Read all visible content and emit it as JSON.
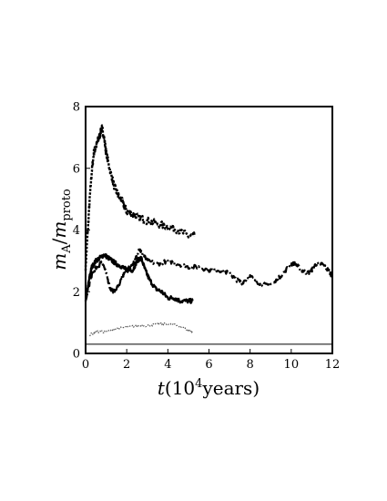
{
  "chart_data": {
    "type": "line",
    "title": "",
    "xlabel_parts": {
      "var": "t",
      "open": "(",
      "base": "10",
      "exp": "4",
      "unit": "years",
      "close": ")"
    },
    "ylabel_parts": {
      "m": "m",
      "sub1": "A",
      "slash": "/",
      "m2": "m",
      "sub2": "proto"
    },
    "xlim": [
      0,
      12
    ],
    "ylim": [
      0,
      8
    ],
    "xticks": [
      0,
      2,
      4,
      6,
      8,
      10,
      12
    ],
    "yticks": [
      0,
      2,
      4,
      6,
      8
    ],
    "grid": false,
    "legend": "none",
    "series": [
      {
        "style": "dotted",
        "x": [
          0.0,
          0.1,
          0.2,
          0.3,
          0.4,
          0.5,
          0.6,
          0.7,
          0.8,
          0.9,
          1.0,
          1.2,
          1.4,
          1.6,
          1.8,
          2.0,
          2.3,
          2.6,
          3.0,
          3.5,
          4.0,
          4.5,
          5.0,
          5.3
        ],
        "y": [
          2.8,
          3.9,
          5.0,
          5.9,
          6.5,
          6.7,
          6.9,
          7.1,
          7.3,
          7.0,
          6.5,
          5.9,
          5.4,
          5.1,
          4.9,
          4.6,
          4.5,
          4.4,
          4.3,
          4.2,
          4.1,
          4.0,
          3.8,
          3.8
        ]
      },
      {
        "style": "solid",
        "x": [
          0.0,
          0.1,
          0.2,
          0.3,
          0.5,
          0.7,
          0.9,
          1.1,
          1.3,
          1.5,
          1.8,
          2.0,
          2.3,
          2.5,
          2.7,
          2.9,
          3.1,
          3.4,
          3.7,
          4.0,
          4.3,
          4.6,
          5.0,
          5.2
        ],
        "y": [
          1.7,
          2.1,
          2.5,
          2.8,
          3.0,
          3.1,
          3.2,
          3.1,
          3.0,
          2.9,
          2.8,
          2.7,
          2.7,
          3.0,
          3.1,
          2.7,
          2.4,
          2.1,
          2.0,
          1.8,
          1.8,
          1.7,
          1.7,
          1.7
        ]
      },
      {
        "style": "dashdot",
        "x": [
          0.0,
          0.2,
          0.4,
          0.6,
          0.8,
          1.0,
          1.2,
          1.4,
          1.6,
          1.8,
          2.0,
          2.2,
          2.4,
          2.6,
          2.8,
          3.0,
          3.5,
          4.0,
          4.5,
          5.0,
          5.5,
          6.0,
          6.5,
          7.0,
          7.3,
          7.6,
          8.0,
          8.4,
          8.8,
          9.2,
          9.6,
          10.0,
          10.2,
          10.5,
          10.8,
          11.0,
          11.2,
          11.5,
          11.8,
          12.0
        ],
        "y": [
          1.7,
          2.3,
          2.7,
          2.8,
          3.0,
          2.6,
          2.1,
          2.0,
          2.2,
          2.5,
          2.7,
          2.8,
          3.0,
          3.4,
          3.2,
          3.0,
          2.9,
          3.0,
          2.9,
          2.8,
          2.8,
          2.7,
          2.7,
          2.6,
          2.4,
          2.3,
          2.5,
          2.3,
          2.2,
          2.3,
          2.6,
          2.9,
          2.9,
          2.7,
          2.6,
          2.7,
          2.9,
          2.9,
          2.7,
          2.5
        ]
      },
      {
        "style": "faint",
        "x": [
          0.2,
          0.5,
          1.0,
          1.5,
          2.0,
          2.5,
          3.0,
          3.5,
          4.0,
          4.5,
          5.0,
          5.2
        ],
        "y": [
          0.6,
          0.7,
          0.7,
          0.8,
          0.85,
          0.9,
          0.9,
          0.95,
          0.95,
          0.9,
          0.75,
          0.7
        ]
      },
      {
        "style": "thin",
        "x": [
          0,
          12
        ],
        "y": [
          0.3,
          0.3
        ]
      }
    ]
  }
}
